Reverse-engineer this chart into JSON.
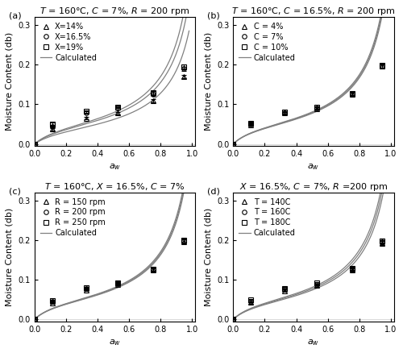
{
  "subplots": [
    {
      "label": "(a)",
      "title_parts": [
        "T",
        " = 160°C, ",
        "C",
        " = 7%, ",
        "R",
        " = 200 rpm"
      ],
      "legend_entries": [
        "X=14%",
        "X=16.5%",
        "X=19%",
        "Calculated"
      ],
      "aw": [
        0.0,
        0.113,
        0.328,
        0.528,
        0.753,
        0.946
      ],
      "series": [
        [
          0.0,
          0.038,
          0.065,
          0.078,
          0.11,
          0.17
        ],
        [
          0.0,
          0.045,
          0.079,
          0.09,
          0.125,
          0.19
        ],
        [
          0.0,
          0.05,
          0.082,
          0.093,
          0.13,
          0.195
        ]
      ],
      "yerr": [
        [
          0.0,
          0.004,
          0.003,
          0.003,
          0.004,
          0.005
        ],
        [
          0.0,
          0.004,
          0.003,
          0.003,
          0.004,
          0.005
        ],
        [
          0.0,
          0.004,
          0.003,
          0.003,
          0.004,
          0.005
        ]
      ],
      "n_calc": 3,
      "calc_params": [
        {
          "Wm": 0.04,
          "C": 8.0,
          "K": 0.88
        },
        {
          "Wm": 0.047,
          "C": 8.0,
          "K": 0.89
        },
        {
          "Wm": 0.05,
          "C": 8.0,
          "K": 0.9
        }
      ]
    },
    {
      "label": "(b)",
      "title_parts": [
        "T",
        " = 160°C, ",
        "C",
        " = 16.5%, ",
        "R",
        " = 200 rpm"
      ],
      "legend_entries": [
        "C = 4%",
        "C = 7%",
        "C = 10%",
        "Calculated"
      ],
      "aw": [
        0.0,
        0.113,
        0.328,
        0.528,
        0.753,
        0.946
      ],
      "series": [
        [
          0.0,
          0.049,
          0.078,
          0.089,
          0.126,
          0.196
        ],
        [
          0.0,
          0.051,
          0.079,
          0.091,
          0.127,
          0.197
        ],
        [
          0.0,
          0.053,
          0.08,
          0.092,
          0.128,
          0.198
        ]
      ],
      "yerr": [
        [
          0.0,
          0.003,
          0.003,
          0.003,
          0.004,
          0.005
        ],
        [
          0.0,
          0.003,
          0.003,
          0.003,
          0.004,
          0.005
        ],
        [
          0.0,
          0.003,
          0.003,
          0.003,
          0.004,
          0.005
        ]
      ],
      "n_calc": 3,
      "calc_params": [
        {
          "Wm": 0.048,
          "C": 9.0,
          "K": 0.905
        },
        {
          "Wm": 0.049,
          "C": 9.0,
          "K": 0.906
        },
        {
          "Wm": 0.05,
          "C": 9.0,
          "K": 0.907
        }
      ]
    },
    {
      "label": "(c)",
      "title_parts": [
        "T",
        " = 160°C, ",
        "X",
        " = 16.5%, ",
        "C",
        " = 7%"
      ],
      "legend_entries": [
        "R = 150 rpm",
        "R = 200 rpm",
        "R = 250 rpm",
        "Calculated"
      ],
      "aw": [
        0.0,
        0.113,
        0.328,
        0.528,
        0.753,
        0.946
      ],
      "series": [
        [
          0.0,
          0.042,
          0.074,
          0.089,
          0.125,
          0.196
        ],
        [
          0.0,
          0.045,
          0.077,
          0.091,
          0.126,
          0.198
        ],
        [
          0.0,
          0.047,
          0.079,
          0.093,
          0.127,
          0.199
        ]
      ],
      "yerr": [
        [
          0.0,
          0.003,
          0.003,
          0.003,
          0.004,
          0.005
        ],
        [
          0.0,
          0.003,
          0.003,
          0.003,
          0.004,
          0.005
        ],
        [
          0.0,
          0.003,
          0.003,
          0.003,
          0.004,
          0.005
        ]
      ],
      "n_calc": 3,
      "calc_params": [
        {
          "Wm": 0.047,
          "C": 9.0,
          "K": 0.904
        },
        {
          "Wm": 0.048,
          "C": 9.0,
          "K": 0.905
        },
        {
          "Wm": 0.049,
          "C": 9.0,
          "K": 0.906
        }
      ]
    },
    {
      "label": "(d)",
      "title_parts": [
        "X",
        " = 16.5%, ",
        "C",
        " = 7%, ",
        "R",
        " =200 rpm"
      ],
      "legend_entries": [
        "T = 140C",
        "T = 160C",
        "T = 180C",
        "Calculated"
      ],
      "aw": [
        0.0,
        0.113,
        0.328,
        0.528,
        0.753,
        0.946
      ],
      "series": [
        [
          0.0,
          0.043,
          0.072,
          0.085,
          0.124,
          0.192
        ],
        [
          0.0,
          0.046,
          0.075,
          0.088,
          0.126,
          0.195
        ],
        [
          0.0,
          0.049,
          0.078,
          0.092,
          0.128,
          0.198
        ]
      ],
      "yerr": [
        [
          0.0,
          0.003,
          0.003,
          0.003,
          0.004,
          0.005
        ],
        [
          0.0,
          0.003,
          0.003,
          0.003,
          0.004,
          0.005
        ],
        [
          0.0,
          0.003,
          0.003,
          0.003,
          0.004,
          0.005
        ]
      ],
      "n_calc": 3,
      "calc_params": [
        {
          "Wm": 0.046,
          "C": 9.0,
          "K": 0.902
        },
        {
          "Wm": 0.048,
          "C": 9.0,
          "K": 0.905
        },
        {
          "Wm": 0.05,
          "C": 9.0,
          "K": 0.907
        }
      ]
    }
  ],
  "markers": [
    "^",
    "o",
    "s"
  ],
  "marker_size": 4,
  "line_color": "#808080",
  "marker_color": "black",
  "marker_facecolor": "none",
  "xlim": [
    0.0,
    1.02
  ],
  "ylim": [
    -0.005,
    0.32
  ],
  "yticks": [
    0.0,
    0.1,
    0.2,
    0.3
  ],
  "xticks": [
    0.0,
    0.2,
    0.4,
    0.6,
    0.8,
    1.0
  ],
  "ylabel": "Moisture Content (db)",
  "figsize": [
    5.0,
    4.38
  ],
  "dpi": 100,
  "title_fontsize": 8,
  "label_fontsize": 8,
  "tick_fontsize": 7,
  "legend_fontsize": 7
}
